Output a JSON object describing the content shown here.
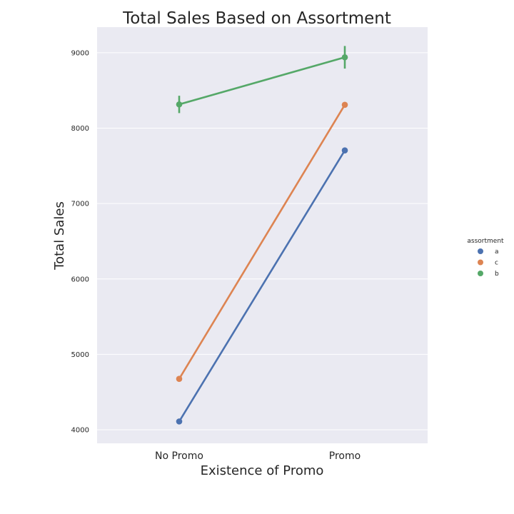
{
  "chart_data": {
    "type": "line",
    "title": "Total Sales Based on Assortment",
    "xlabel": "Existence of Promo",
    "ylabel": "Total Sales",
    "categories": [
      "No Promo",
      "Promo"
    ],
    "ylim": [
      3820,
      9340
    ],
    "yticks": [
      4000,
      5000,
      6000,
      7000,
      8000,
      9000
    ],
    "grid": true,
    "legend": {
      "title": "assortment",
      "placement": "right"
    },
    "series": [
      {
        "name": "a",
        "color": "#4c72b0",
        "values": [
          4110,
          7705
        ],
        "errors": [
          null,
          null
        ]
      },
      {
        "name": "c",
        "color": "#dd8452",
        "values": [
          4675,
          8310
        ],
        "errors": [
          null,
          null
        ]
      },
      {
        "name": "b",
        "color": "#55a868",
        "values": [
          8315,
          8940
        ],
        "errors": [
          [
            8200,
            8430
          ],
          [
            8790,
            9090
          ]
        ]
      }
    ]
  }
}
